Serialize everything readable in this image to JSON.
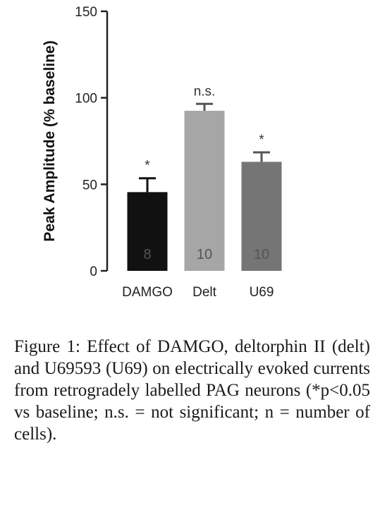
{
  "chart_data": {
    "type": "bar",
    "ylabel": "Peak Amplitude (% baseline)",
    "xlabel": "",
    "ylim": [
      0,
      150
    ],
    "yticks": [
      0,
      50,
      100,
      150
    ],
    "categories": [
      "DAMGO",
      "Delt",
      "U69"
    ],
    "values": [
      45.5,
      92.5,
      63
    ],
    "errors": [
      8,
      4,
      5.5
    ],
    "bar_colors": [
      "#111111",
      "#a6a6a6",
      "#757575"
    ],
    "significance": [
      "*",
      "n.s.",
      "*"
    ],
    "n_cells": [
      "8",
      "10",
      "10"
    ],
    "grid": false
  },
  "caption": "Figure 1: Effect of DAMGO, deltorphin II (delt) and U69593 (U69) on electrically evoked currents from retrogradely labelled PAG neurons (*p<0.05 vs baseline; n.s. = not significant; n = number of cells)."
}
